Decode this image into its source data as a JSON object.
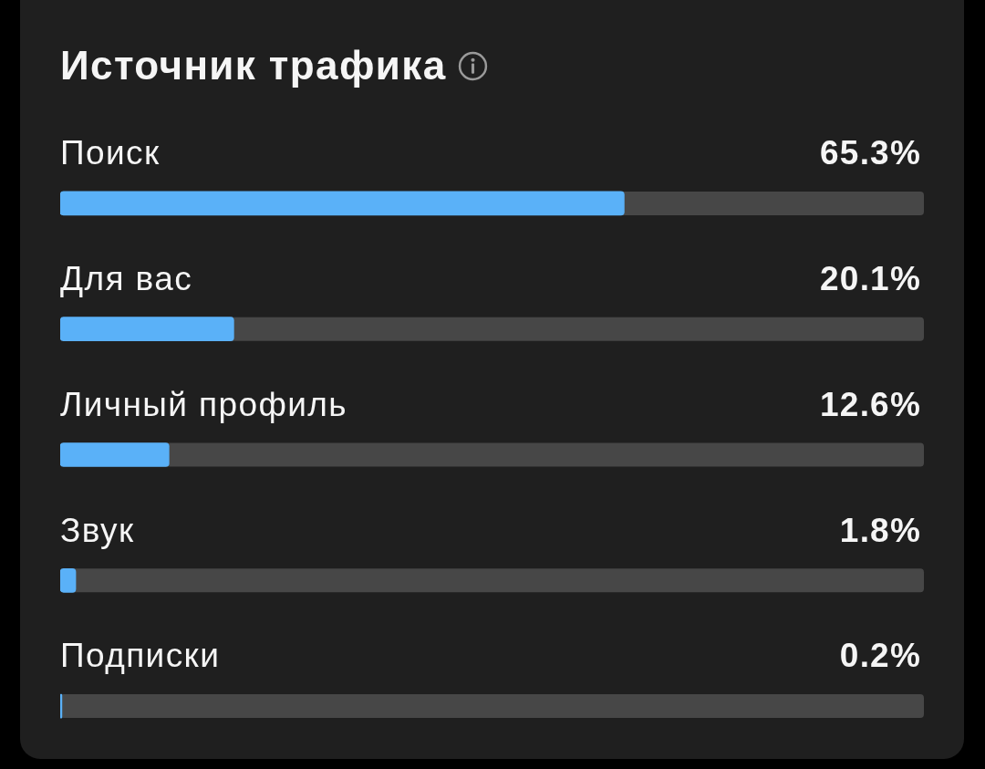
{
  "chart_data": {
    "type": "bar",
    "orientation": "horizontal",
    "title": "Источник трафика",
    "categories": [
      "Поиск",
      "Для вас",
      "Личный профиль",
      "Звук",
      "Подписки"
    ],
    "values": [
      65.3,
      20.1,
      12.6,
      1.8,
      0.2
    ],
    "color": "#5ab1f8",
    "value_labels": [
      "65.3%",
      "20.1%",
      "12.6%",
      "1.8%",
      "0.2%"
    ],
    "xlim": [
      0,
      100
    ],
    "tick_labels": "y"
  }
}
